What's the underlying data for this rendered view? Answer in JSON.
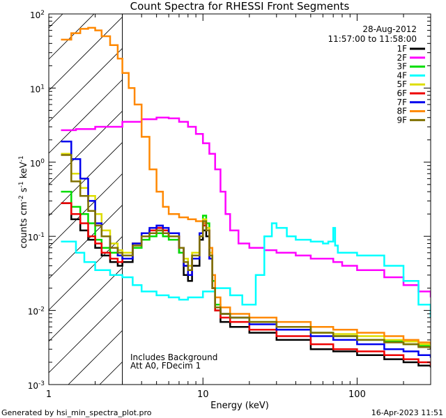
{
  "chart_data": {
    "type": "line",
    "title": "Count Spectra for RHESSI Front Segments",
    "xlabel": "Energy (keV)",
    "ylabel": "counts cm-2 s-1 keV-1",
    "x_scale": "log",
    "y_scale": "log",
    "xlim": [
      1.0,
      300.0
    ],
    "ylim": [
      0.001,
      100.0
    ],
    "x_tick_labels": [
      "1",
      "10",
      "100"
    ],
    "x_tick_values": [
      1,
      10,
      100
    ],
    "y_tick_values": [
      0.001,
      0.01,
      0.1,
      1,
      10,
      100
    ],
    "y_tick_labels": [
      {
        "base": "10",
        "exp": "-3"
      },
      {
        "base": "10",
        "exp": "-2"
      },
      {
        "base": "10",
        "exp": "-1"
      },
      {
        "base": "10",
        "exp": "0"
      },
      {
        "base": "10",
        "exp": "1"
      },
      {
        "base": "10",
        "exp": "2"
      }
    ],
    "shaded_region_xmax": 3.0,
    "date_label": "28-Aug-2012",
    "time_range_label": "11:57:00 to 11:58:00",
    "annotations": [
      "Includes Background",
      "Att A0, FDecim 1"
    ],
    "series": [
      {
        "name": "1F",
        "color": "#000000",
        "x": [
          1.2,
          1.4,
          1.6,
          1.8,
          2.0,
          2.2,
          2.5,
          2.8,
          3.0,
          3.5,
          4.0,
          4.5,
          5.0,
          5.5,
          6.0,
          7.0,
          7.5,
          8.0,
          8.5,
          9.5,
          10.0,
          10.5,
          11.0,
          11.5,
          12.0,
          13.0,
          15.0,
          20.0,
          30.0,
          50.0,
          70.0,
          100.0,
          150.0,
          200.0,
          250.0,
          300.0
        ],
        "y": [
          0.28,
          0.17,
          0.12,
          0.09,
          0.07,
          0.055,
          0.045,
          0.04,
          0.045,
          0.07,
          0.1,
          0.12,
          0.13,
          0.12,
          0.1,
          0.06,
          0.03,
          0.025,
          0.04,
          0.09,
          0.12,
          0.1,
          0.05,
          0.02,
          0.01,
          0.007,
          0.006,
          0.005,
          0.004,
          0.003,
          0.0028,
          0.0025,
          0.0022,
          0.002,
          0.0018,
          0.0017
        ]
      },
      {
        "name": "2F",
        "color": "#ff00ff",
        "x": [
          1.2,
          1.5,
          2.0,
          3.0,
          4.0,
          5.0,
          6.0,
          7.0,
          8.0,
          9.0,
          10.0,
          11.0,
          12.0,
          13.0,
          14.0,
          15.0,
          17.0,
          20.0,
          25.0,
          30.0,
          40.0,
          50.0,
          60.0,
          70.0,
          80.0,
          100.0,
          150.0,
          200.0,
          250.0,
          300.0
        ],
        "y": [
          2.7,
          2.8,
          3.0,
          3.5,
          3.8,
          4.0,
          3.9,
          3.5,
          3.0,
          2.4,
          1.8,
          1.3,
          0.8,
          0.4,
          0.2,
          0.12,
          0.08,
          0.07,
          0.065,
          0.06,
          0.055,
          0.05,
          0.05,
          0.045,
          0.04,
          0.035,
          0.028,
          0.022,
          0.018,
          0.015
        ]
      },
      {
        "name": "3F",
        "color": "#00dd00",
        "x": [
          1.2,
          1.4,
          1.6,
          1.8,
          2.0,
          2.2,
          2.5,
          2.8,
          3.0,
          3.5,
          4.0,
          4.5,
          5.0,
          5.5,
          6.0,
          7.0,
          7.5,
          8.0,
          8.5,
          9.5,
          10.0,
          10.5,
          11.0,
          11.5,
          12.0,
          13.0,
          15.0,
          20.0,
          30.0,
          50.0,
          70.0,
          100.0,
          150.0,
          200.0,
          250.0,
          300.0
        ],
        "y": [
          0.4,
          0.25,
          0.2,
          0.15,
          0.09,
          0.07,
          0.06,
          0.055,
          0.05,
          0.07,
          0.09,
          0.1,
          0.11,
          0.1,
          0.09,
          0.06,
          0.04,
          0.035,
          0.05,
          0.1,
          0.19,
          0.15,
          0.07,
          0.025,
          0.012,
          0.009,
          0.008,
          0.007,
          0.006,
          0.005,
          0.0045,
          0.004,
          0.0038,
          0.0035,
          0.0033,
          0.003
        ]
      },
      {
        "name": "4F",
        "color": "#00ffff",
        "x": [
          1.2,
          1.5,
          1.7,
          2.0,
          2.5,
          3.0,
          3.5,
          4.0,
          5.0,
          6.0,
          7.0,
          8.0,
          10.0,
          12.0,
          15.0,
          18.0,
          20.0,
          22.0,
          25.0,
          28.0,
          30.0,
          35.0,
          40.0,
          50.0,
          60.0,
          65.0,
          70.0,
          72.0,
          75.0,
          80.0,
          100.0,
          150.0,
          200.0,
          250.0,
          300.0
        ],
        "y": [
          0.085,
          0.06,
          0.045,
          0.035,
          0.03,
          0.028,
          0.022,
          0.018,
          0.016,
          0.015,
          0.014,
          0.015,
          0.018,
          0.02,
          0.016,
          0.012,
          0.012,
          0.03,
          0.1,
          0.15,
          0.13,
          0.1,
          0.09,
          0.085,
          0.08,
          0.085,
          0.13,
          0.075,
          0.06,
          0.06,
          0.055,
          0.04,
          0.025,
          0.012,
          0.008
        ]
      },
      {
        "name": "5F",
        "color": "#dddd00",
        "x": [
          1.2,
          1.4,
          1.6,
          1.8,
          2.0,
          2.2,
          2.5,
          2.8,
          3.0,
          3.5,
          4.0,
          4.5,
          5.0,
          5.5,
          6.0,
          7.0,
          7.5,
          8.0,
          8.5,
          9.5,
          10.0,
          10.5,
          11.0,
          11.5,
          12.0,
          13.0,
          15.0,
          20.0,
          30.0,
          50.0,
          70.0,
          100.0,
          150.0,
          200.0,
          250.0,
          300.0
        ],
        "y": [
          1.3,
          0.7,
          0.45,
          0.35,
          0.2,
          0.12,
          0.08,
          0.065,
          0.06,
          0.08,
          0.1,
          0.11,
          0.12,
          0.11,
          0.1,
          0.07,
          0.05,
          0.04,
          0.06,
          0.11,
          0.17,
          0.13,
          0.06,
          0.02,
          0.011,
          0.009,
          0.008,
          0.007,
          0.006,
          0.005,
          0.0048,
          0.0045,
          0.004,
          0.0038,
          0.0035,
          0.0033
        ]
      },
      {
        "name": "6F",
        "color": "#ee0000",
        "x": [
          1.2,
          1.4,
          1.6,
          1.8,
          2.0,
          2.2,
          2.5,
          2.8,
          3.0,
          3.5,
          4.0,
          4.5,
          5.0,
          5.5,
          6.0,
          7.0,
          7.5,
          8.0,
          8.5,
          9.5,
          10.0,
          10.5,
          11.0,
          11.5,
          12.0,
          13.0,
          15.0,
          20.0,
          30.0,
          50.0,
          70.0,
          100.0,
          150.0,
          200.0,
          250.0,
          300.0
        ],
        "y": [
          0.28,
          0.2,
          0.15,
          0.1,
          0.08,
          0.06,
          0.05,
          0.045,
          0.05,
          0.08,
          0.11,
          0.12,
          0.13,
          0.12,
          0.1,
          0.07,
          0.04,
          0.03,
          0.05,
          0.1,
          0.14,
          0.12,
          0.05,
          0.02,
          0.01,
          0.008,
          0.007,
          0.0055,
          0.0045,
          0.0035,
          0.003,
          0.0028,
          0.0025,
          0.0022,
          0.002,
          0.0018
        ]
      },
      {
        "name": "7F",
        "color": "#0000ee",
        "x": [
          1.2,
          1.4,
          1.6,
          1.8,
          2.0,
          2.2,
          2.5,
          2.8,
          3.0,
          3.5,
          4.0,
          4.5,
          5.0,
          5.5,
          6.0,
          7.0,
          7.5,
          8.0,
          8.5,
          9.5,
          10.0,
          10.5,
          11.0,
          11.5,
          12.0,
          13.0,
          15.0,
          20.0,
          30.0,
          50.0,
          70.0,
          100.0,
          150.0,
          200.0,
          250.0,
          300.0
        ],
        "y": [
          1.9,
          1.1,
          0.6,
          0.3,
          0.15,
          0.1,
          0.07,
          0.055,
          0.05,
          0.08,
          0.11,
          0.13,
          0.14,
          0.13,
          0.11,
          0.07,
          0.04,
          0.03,
          0.05,
          0.11,
          0.15,
          0.12,
          0.05,
          0.02,
          0.011,
          0.009,
          0.008,
          0.0065,
          0.0055,
          0.0045,
          0.004,
          0.0035,
          0.003,
          0.0028,
          0.0025,
          0.0023
        ]
      },
      {
        "name": "8F",
        "color": "#ff8800",
        "x": [
          1.2,
          1.4,
          1.6,
          1.8,
          2.0,
          2.2,
          2.5,
          2.8,
          3.0,
          3.3,
          3.6,
          4.0,
          4.5,
          5.0,
          5.5,
          6.0,
          7.0,
          8.0,
          9.0,
          10.0,
          10.5,
          11.0,
          11.5,
          12.0,
          13.0,
          15.0,
          20.0,
          30.0,
          50.0,
          70.0,
          100.0,
          150.0,
          200.0,
          250.0,
          300.0
        ],
        "y": [
          45,
          55,
          63,
          65,
          60,
          50,
          38,
          25,
          16,
          10,
          6,
          2.2,
          0.8,
          0.4,
          0.25,
          0.2,
          0.18,
          0.17,
          0.16,
          0.15,
          0.12,
          0.07,
          0.03,
          0.015,
          0.011,
          0.009,
          0.008,
          0.007,
          0.006,
          0.0055,
          0.005,
          0.0045,
          0.004,
          0.0037,
          0.0035
        ]
      },
      {
        "name": "9F",
        "color": "#807000",
        "x": [
          1.2,
          1.4,
          1.6,
          1.8,
          2.0,
          2.2,
          2.5,
          2.8,
          3.0,
          3.5,
          4.0,
          4.5,
          5.0,
          5.5,
          6.0,
          7.0,
          7.5,
          8.0,
          8.5,
          9.5,
          10.0,
          10.5,
          11.0,
          11.5,
          12.0,
          13.0,
          15.0,
          20.0,
          30.0,
          50.0,
          70.0,
          100.0,
          150.0,
          200.0,
          250.0,
          300.0
        ],
        "y": [
          1.25,
          0.55,
          0.35,
          0.22,
          0.14,
          0.1,
          0.07,
          0.06,
          0.055,
          0.075,
          0.1,
          0.11,
          0.12,
          0.11,
          0.1,
          0.07,
          0.045,
          0.035,
          0.055,
          0.1,
          0.16,
          0.12,
          0.055,
          0.02,
          0.011,
          0.009,
          0.008,
          0.007,
          0.006,
          0.005,
          0.0045,
          0.004,
          0.0037,
          0.0035,
          0.0032,
          0.003
        ]
      }
    ]
  },
  "footer": {
    "generated_by": "Generated by hsi_min_spectra_plot.pro",
    "timestamp": "16-Apr-2023 11:51"
  }
}
